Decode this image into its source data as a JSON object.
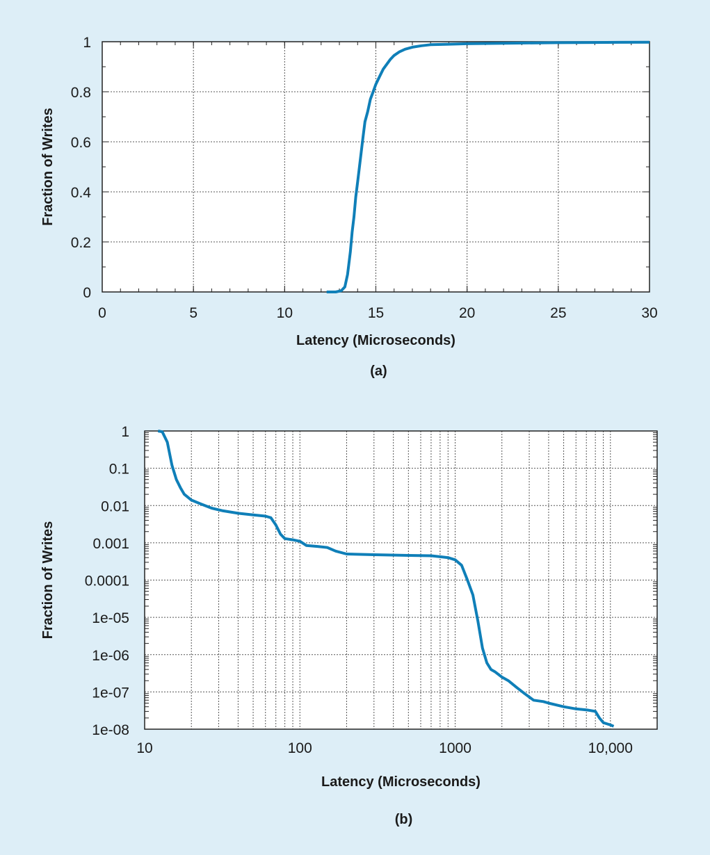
{
  "chart_data": [
    {
      "type": "line",
      "panel_label": "(a)",
      "title": "",
      "xlabel": "Latency (Microseconds)",
      "ylabel": "Fraction of Writes",
      "xlim": [
        0,
        30
      ],
      "ylim": [
        0,
        1
      ],
      "x_scale": "linear",
      "y_scale": "linear",
      "grid": true,
      "x_ticks": [
        0,
        5,
        10,
        15,
        20,
        25,
        30
      ],
      "x_tick_labels": [
        "0",
        "5",
        "10",
        "15",
        "20",
        "25",
        "30"
      ],
      "y_ticks": [
        0,
        0.2,
        0.4,
        0.6,
        0.8,
        1
      ],
      "y_tick_labels": [
        "0",
        "0.2",
        "0.4",
        "0.6",
        "0.8",
        "1"
      ],
      "color": "#0f7fb8",
      "series": [
        {
          "x": [
            12.3,
            12.8,
            13.1,
            13.3,
            13.45,
            13.6,
            13.7,
            13.8,
            13.9,
            14.0,
            14.1,
            14.2,
            14.3,
            14.4,
            14.55,
            14.7,
            14.85,
            15.0,
            15.2,
            15.4,
            15.6,
            15.8,
            16.0,
            16.3,
            16.6,
            17.0,
            17.5,
            18.0,
            19.0,
            20.0,
            22.0,
            25.0,
            27.0,
            30.0
          ],
          "y": [
            0.0,
            0.0,
            0.005,
            0.02,
            0.07,
            0.16,
            0.24,
            0.3,
            0.38,
            0.44,
            0.5,
            0.56,
            0.62,
            0.68,
            0.72,
            0.77,
            0.8,
            0.83,
            0.86,
            0.89,
            0.91,
            0.93,
            0.945,
            0.96,
            0.97,
            0.978,
            0.984,
            0.988,
            0.99,
            0.992,
            0.994,
            0.996,
            0.997,
            0.998
          ]
        }
      ]
    },
    {
      "type": "line",
      "panel_label": "(b)",
      "title": "",
      "xlabel": "Latency (Microseconds)",
      "ylabel": "Fraction of Writes",
      "xlim": [
        10,
        20000
      ],
      "ylim": [
        1e-08,
        1
      ],
      "x_scale": "log",
      "y_scale": "log",
      "grid": true,
      "x_ticks": [
        10,
        100,
        1000,
        10000
      ],
      "x_tick_labels": [
        "10",
        "100",
        "1000",
        "10,000"
      ],
      "y_ticks": [
        1,
        0.1,
        0.01,
        0.001,
        0.0001,
        1e-05,
        1e-06,
        1e-07,
        1e-08
      ],
      "y_tick_labels": [
        "1",
        "0.1",
        "0.01",
        "0.001",
        "0.0001",
        "1e-05",
        "1e-06",
        "1e-07",
        "1e-08"
      ],
      "color": "#0f7fb8",
      "series": [
        {
          "x": [
            12.2,
            13,
            14,
            15,
            16,
            17,
            18,
            20,
            23,
            27,
            32,
            40,
            50,
            60,
            65,
            70,
            75,
            80,
            90,
            100,
            110,
            130,
            150,
            170,
            200,
            300,
            500,
            700,
            900,
            1000,
            1100,
            1200,
            1300,
            1400,
            1500,
            1600,
            1700,
            1800,
            2000,
            2200,
            2500,
            2800,
            3200,
            3700,
            4000,
            5000,
            6000,
            7000,
            8000,
            8500,
            9000,
            10000,
            10500
          ],
          "y": [
            1,
            0.95,
            0.5,
            0.12,
            0.05,
            0.03,
            0.02,
            0.014,
            0.011,
            0.0085,
            0.0072,
            0.0062,
            0.0056,
            0.0052,
            0.0047,
            0.003,
            0.0017,
            0.0013,
            0.0012,
            0.0011,
            0.00085,
            0.0008,
            0.00075,
            0.0006,
            0.0005,
            0.00048,
            0.00046,
            0.00045,
            0.0004,
            0.00035,
            0.00025,
            0.0001,
            4e-05,
            8e-06,
            1.5e-06,
            6e-07,
            4e-07,
            3.5e-07,
            2.5e-07,
            2e-07,
            1.3e-07,
            9e-08,
            6e-08,
            5.5e-08,
            5e-08,
            4e-08,
            3.5e-08,
            3.3e-08,
            3e-08,
            2e-08,
            1.5e-08,
            1.3e-08,
            1.2e-08
          ]
        }
      ]
    }
  ]
}
